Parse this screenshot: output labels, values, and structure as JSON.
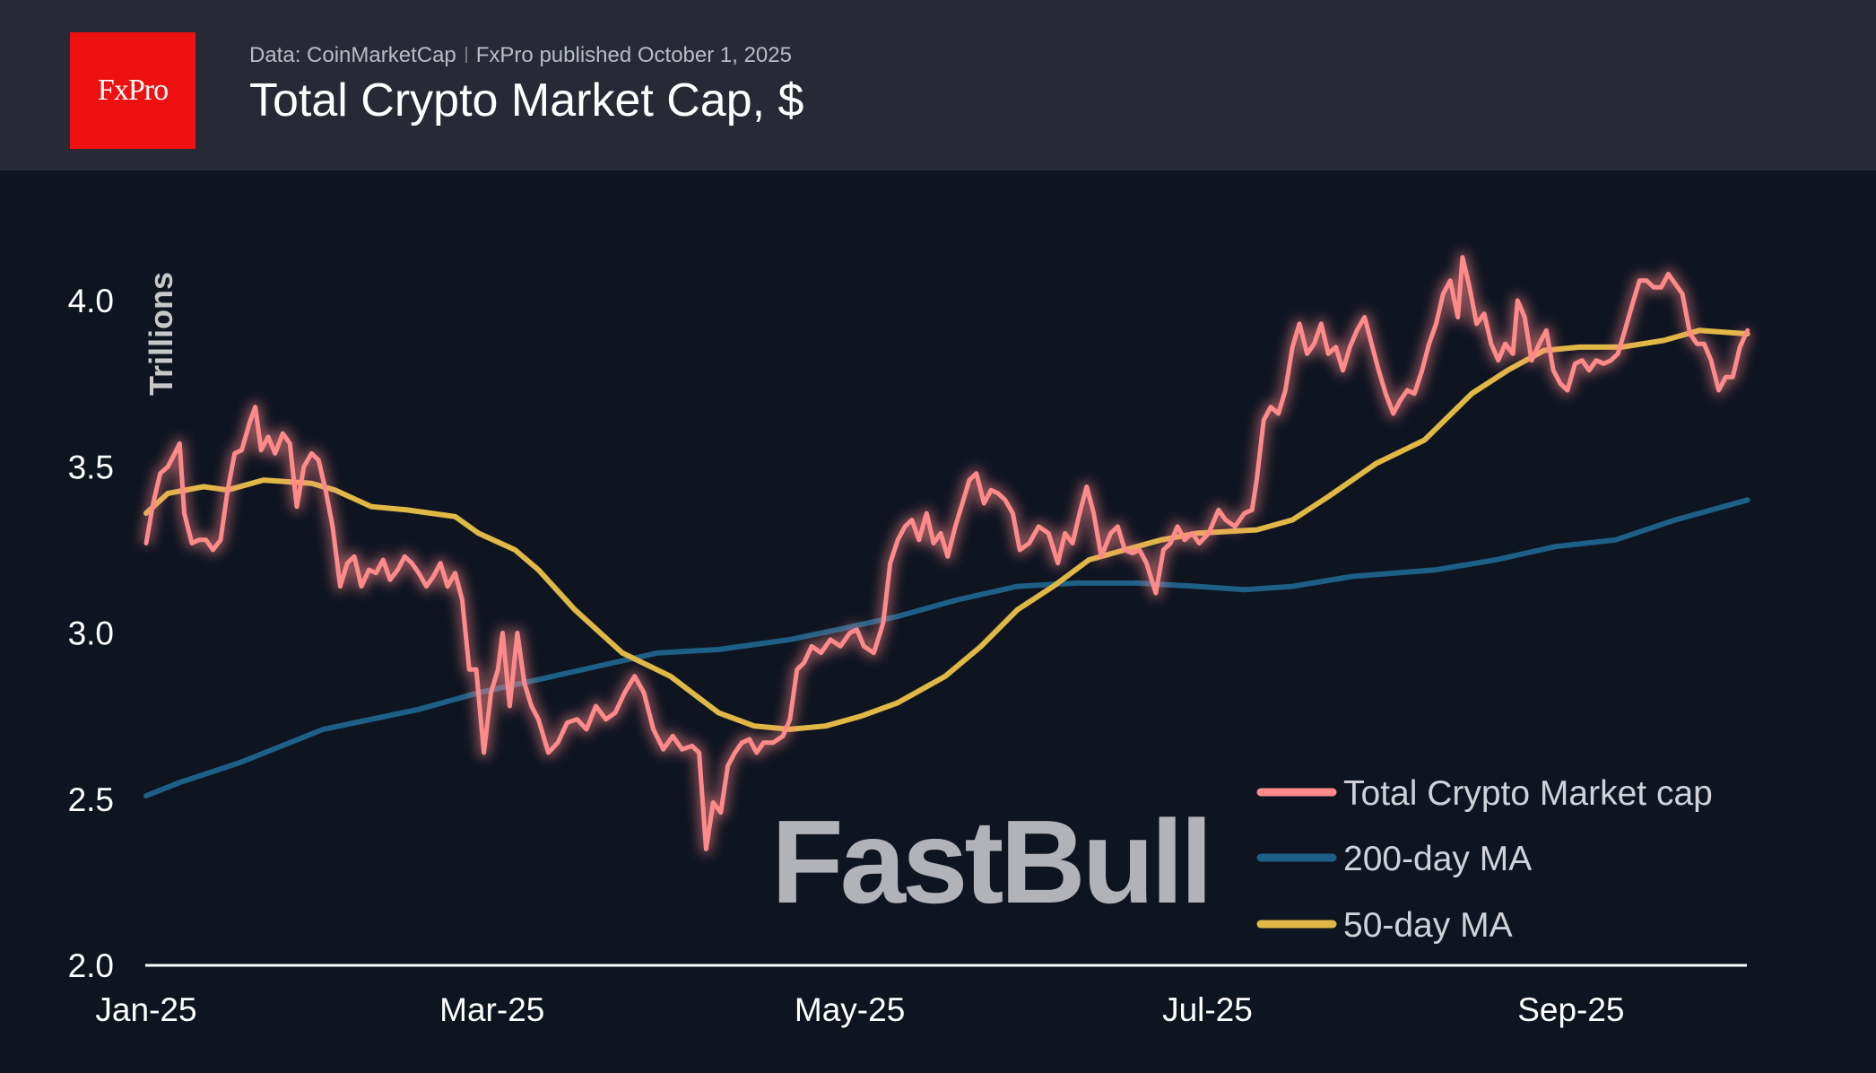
{
  "header": {
    "logo_text": "FxPro",
    "source": "Data: CoinMarketCap",
    "published": "FxPro published October 1, 2025",
    "title": "Total Crypto Market Cap, $"
  },
  "watermark": "FastBull",
  "chart_data": {
    "type": "line",
    "title": "Total Crypto Market Cap, $",
    "ylabel": "Trillions",
    "xlabel": "",
    "x_unit": "days since 2025-01-01",
    "xlim": [
      0,
      273
    ],
    "ylim": [
      2.0,
      4.0
    ],
    "yticks": [
      {
        "value": 2.0,
        "label": "2.0"
      },
      {
        "value": 2.5,
        "label": "2.5"
      },
      {
        "value": 3.0,
        "label": "3.0"
      },
      {
        "value": 3.5,
        "label": "3.5"
      },
      {
        "value": 4.0,
        "label": "4.0"
      }
    ],
    "xticks": [
      {
        "value": 0,
        "label": "Jan-25"
      },
      {
        "value": 59,
        "label": "Mar-25"
      },
      {
        "value": 120,
        "label": "May-25"
      },
      {
        "value": 181,
        "label": "Jul-25"
      },
      {
        "value": 243,
        "label": "Sep-25"
      }
    ],
    "legend_position": "bottom-right",
    "series": [
      {
        "name": "Total Crypto Market cap",
        "color": "#ff8a8a",
        "x": [
          0,
          1.2,
          2.4,
          3.7,
          4.9,
          5.7,
          6.5,
          7.8,
          9.0,
          10.2,
          11.4,
          12.7,
          13.9,
          15.1,
          16.3,
          17.6,
          18.6,
          19.6,
          20.8,
          22.0,
          23.3,
          24.5,
          25.7,
          26.9,
          28.2,
          29.4,
          30.6,
          31.8,
          33.1,
          34.3,
          35.5,
          36.7,
          38.0,
          39.2,
          40.4,
          41.6,
          42.9,
          44.1,
          45.3,
          46.5,
          47.8,
          49.0,
          50.2,
          51.4,
          52.7,
          53.9,
          55.1,
          56.3,
          57.6,
          58.8,
          60.0,
          60.8,
          62.0,
          63.3,
          64.5,
          65.7,
          66.9,
          68.6,
          70.2,
          71.8,
          73.5,
          75.1,
          76.7,
          78.4,
          80.0,
          81.6,
          83.3,
          84.9,
          86.5,
          88.2,
          89.8,
          91.4,
          93.1,
          94.3,
          95.5,
          96.7,
          98.0,
          99.2,
          100.4,
          101.6,
          102.9,
          104.1,
          105.3,
          106.9,
          108.6,
          109.8,
          111.0,
          112.2,
          113.5,
          115.1,
          116.7,
          118.4,
          120.0,
          121.2,
          122.4,
          124.1,
          125.7,
          126.9,
          128.2,
          129.4,
          130.6,
          131.8,
          133.1,
          134.3,
          135.5,
          136.7,
          138.0,
          139.2,
          140.4,
          141.6,
          142.9,
          144.1,
          145.3,
          146.5,
          147.8,
          149.0,
          150.6,
          152.2,
          153.9,
          155.5,
          156.7,
          158.0,
          159.2,
          160.4,
          161.6,
          162.9,
          164.5,
          165.7,
          166.9,
          168.2,
          169.4,
          170.6,
          172.2,
          173.5,
          174.7,
          175.9,
          177.1,
          178.4,
          179.6,
          181.2,
          182.9,
          184.1,
          185.7,
          187.3,
          188.6,
          189.4,
          190.6,
          191.8,
          193.1,
          194.3,
          195.5,
          196.7,
          198.0,
          199.2,
          200.4,
          201.6,
          202.9,
          204.1,
          205.3,
          206.5,
          207.8,
          209.0,
          210.2,
          211.4,
          212.7,
          213.9,
          215.1,
          216.3,
          217.6,
          218.8,
          220.0,
          221.2,
          222.4,
          223.7,
          224.5,
          225.7,
          226.9,
          228.2,
          229.4,
          230.6,
          231.8,
          233.1,
          233.9,
          235.1,
          236.3,
          237.6,
          238.8,
          240.0,
          241.2,
          242.4,
          243.7,
          244.9,
          246.1,
          247.3,
          248.6,
          249.8,
          251.0,
          252.2,
          253.5,
          254.7,
          255.9,
          257.1,
          258.4,
          259.6,
          260.8,
          262.0,
          263.3,
          264.5,
          265.7,
          266.9,
          268.2,
          269.4,
          270.6,
          271.8,
          273.1
        ],
        "values": [
          3.27,
          3.39,
          3.48,
          3.5,
          3.54,
          3.57,
          3.36,
          3.27,
          3.28,
          3.28,
          3.25,
          3.28,
          3.43,
          3.54,
          3.55,
          3.63,
          3.68,
          3.55,
          3.59,
          3.54,
          3.6,
          3.57,
          3.38,
          3.5,
          3.54,
          3.52,
          3.43,
          3.32,
          3.14,
          3.21,
          3.23,
          3.14,
          3.19,
          3.18,
          3.22,
          3.16,
          3.19,
          3.23,
          3.21,
          3.18,
          3.14,
          3.17,
          3.21,
          3.14,
          3.18,
          3.1,
          2.89,
          2.89,
          2.64,
          2.82,
          2.89,
          3.0,
          2.78,
          3.0,
          2.85,
          2.78,
          2.74,
          2.64,
          2.67,
          2.73,
          2.74,
          2.71,
          2.78,
          2.74,
          2.76,
          2.82,
          2.87,
          2.82,
          2.71,
          2.65,
          2.69,
          2.65,
          2.66,
          2.64,
          2.35,
          2.49,
          2.46,
          2.6,
          2.64,
          2.67,
          2.68,
          2.64,
          2.67,
          2.67,
          2.69,
          2.74,
          2.89,
          2.91,
          2.96,
          2.94,
          2.98,
          2.96,
          3.0,
          3.01,
          2.96,
          2.94,
          3.03,
          3.21,
          3.28,
          3.32,
          3.34,
          3.28,
          3.36,
          3.27,
          3.3,
          3.23,
          3.32,
          3.39,
          3.46,
          3.48,
          3.39,
          3.43,
          3.42,
          3.4,
          3.36,
          3.25,
          3.27,
          3.32,
          3.3,
          3.21,
          3.3,
          3.27,
          3.36,
          3.44,
          3.36,
          3.23,
          3.3,
          3.32,
          3.25,
          3.24,
          3.25,
          3.21,
          3.12,
          3.25,
          3.27,
          3.32,
          3.28,
          3.3,
          3.27,
          3.3,
          3.37,
          3.34,
          3.32,
          3.36,
          3.37,
          3.46,
          3.64,
          3.68,
          3.66,
          3.73,
          3.86,
          3.93,
          3.84,
          3.87,
          3.93,
          3.84,
          3.86,
          3.79,
          3.86,
          3.91,
          3.95,
          3.87,
          3.79,
          3.72,
          3.66,
          3.7,
          3.73,
          3.72,
          3.79,
          3.87,
          3.93,
          4.02,
          4.06,
          3.95,
          4.13,
          4.04,
          3.93,
          3.96,
          3.87,
          3.82,
          3.87,
          3.84,
          4.0,
          3.95,
          3.82,
          3.87,
          3.91,
          3.79,
          3.75,
          3.73,
          3.81,
          3.82,
          3.79,
          3.82,
          3.81,
          3.82,
          3.84,
          3.91,
          3.99,
          4.06,
          4.06,
          4.04,
          4.04,
          4.08,
          4.05,
          4.02,
          3.9,
          3.87,
          3.87,
          3.82,
          3.73,
          3.77,
          3.77,
          3.86,
          3.91
        ]
      },
      {
        "name": "200-day MA",
        "color": "#1d5f86",
        "x": [
          0,
          5.7,
          16.0,
          30.2,
          46.5,
          56.7,
          66.9,
          77.1,
          87.3,
          97.6,
          109.8,
          118.0,
          128.2,
          138.4,
          148.6,
          158.8,
          169.0,
          179.2,
          187.3,
          195.5,
          205.7,
          220.0,
          230.2,
          240.4,
          250.6,
          260.8,
          273.1
        ],
        "values": [
          2.51,
          2.55,
          2.61,
          2.71,
          2.77,
          2.82,
          2.86,
          2.9,
          2.94,
          2.95,
          2.98,
          3.01,
          3.05,
          3.1,
          3.14,
          3.15,
          3.15,
          3.14,
          3.13,
          3.14,
          3.17,
          3.19,
          3.22,
          3.26,
          3.28,
          3.34,
          3.4
        ]
      },
      {
        "name": "50-day MA",
        "color": "#e0b845",
        "x": [
          0,
          3.7,
          9.8,
          13.9,
          20.0,
          28.2,
          32.2,
          38.4,
          44.5,
          52.7,
          56.7,
          62.9,
          66.9,
          73.1,
          81.2,
          89.4,
          97.6,
          103.7,
          109.8,
          115.9,
          122.0,
          128.2,
          136.3,
          142.4,
          148.6,
          154.7,
          160.8,
          166.9,
          173.1,
          179.2,
          189.4,
          195.5,
          201.6,
          209.8,
          218.0,
          226.1,
          232.2,
          238.4,
          244.5,
          251.6,
          258.8,
          264.9,
          273.1
        ],
        "values": [
          3.36,
          3.42,
          3.44,
          3.43,
          3.46,
          3.45,
          3.43,
          3.38,
          3.37,
          3.35,
          3.3,
          3.25,
          3.19,
          3.07,
          2.94,
          2.87,
          2.76,
          2.72,
          2.71,
          2.72,
          2.75,
          2.79,
          2.87,
          2.96,
          3.07,
          3.14,
          3.22,
          3.25,
          3.28,
          3.3,
          3.31,
          3.34,
          3.41,
          3.51,
          3.58,
          3.72,
          3.79,
          3.85,
          3.86,
          3.86,
          3.88,
          3.91,
          3.9
        ]
      }
    ]
  }
}
